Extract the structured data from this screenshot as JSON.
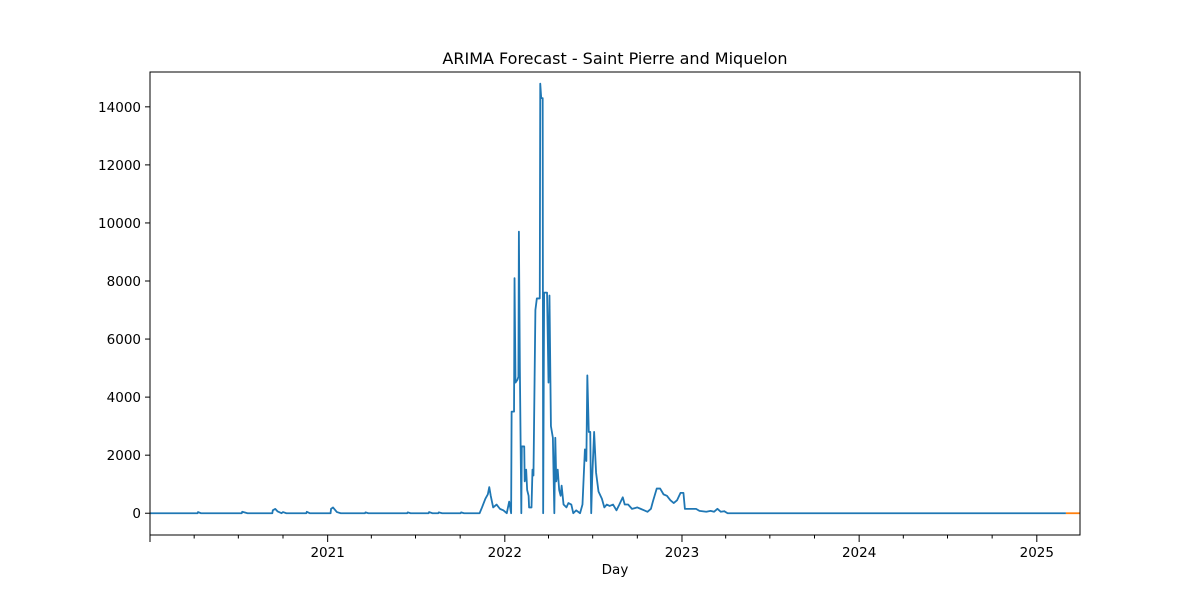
{
  "chart_data": {
    "type": "line",
    "title": "ARIMA Forecast - Saint Pierre and Miquelon",
    "xlabel": "Day",
    "ylabel": "",
    "x_axis": "date",
    "xlim": [
      "2020-01-01",
      "2025-03-31"
    ],
    "ylim": [
      -750,
      15200
    ],
    "x_tick_labels": [
      "2021",
      "2022",
      "2023",
      "2024",
      "2025"
    ],
    "y_ticks": [
      0,
      2000,
      4000,
      6000,
      8000,
      10000,
      12000,
      14000
    ],
    "grid": false,
    "legend": "none",
    "colors": {
      "history": "#1f77b4",
      "forecast": "#ff7f0e"
    },
    "series": [
      {
        "role": "history",
        "points": [
          [
            "2020-01-01",
            0
          ],
          [
            "2020-04-08",
            0
          ],
          [
            "2020-04-09",
            40
          ],
          [
            "2020-04-15",
            0
          ],
          [
            "2020-07-08",
            0
          ],
          [
            "2020-07-09",
            50
          ],
          [
            "2020-07-20",
            0
          ],
          [
            "2020-09-09",
            0
          ],
          [
            "2020-09-10",
            100
          ],
          [
            "2020-09-15",
            150
          ],
          [
            "2020-09-20",
            60
          ],
          [
            "2020-09-28",
            0
          ],
          [
            "2020-10-01",
            40
          ],
          [
            "2020-10-08",
            0
          ],
          [
            "2020-11-18",
            0
          ],
          [
            "2020-11-19",
            50
          ],
          [
            "2020-11-25",
            0
          ],
          [
            "2021-01-07",
            0
          ],
          [
            "2021-01-08",
            150
          ],
          [
            "2021-01-12",
            200
          ],
          [
            "2021-01-20",
            40
          ],
          [
            "2021-01-28",
            0
          ],
          [
            "2021-03-19",
            0
          ],
          [
            "2021-03-20",
            30
          ],
          [
            "2021-03-26",
            0
          ],
          [
            "2021-06-14",
            0
          ],
          [
            "2021-06-15",
            30
          ],
          [
            "2021-06-21",
            0
          ],
          [
            "2021-07-28",
            0
          ],
          [
            "2021-07-29",
            40
          ],
          [
            "2021-08-05",
            0
          ],
          [
            "2021-08-17",
            0
          ],
          [
            "2021-08-18",
            30
          ],
          [
            "2021-08-25",
            0
          ],
          [
            "2021-10-02",
            0
          ],
          [
            "2021-10-03",
            30
          ],
          [
            "2021-10-09",
            0
          ],
          [
            "2021-11-10",
            0
          ],
          [
            "2021-11-15",
            200
          ],
          [
            "2021-11-22",
            500
          ],
          [
            "2021-11-27",
            650
          ],
          [
            "2021-11-30",
            900
          ],
          [
            "2021-12-03",
            600
          ],
          [
            "2021-12-08",
            200
          ],
          [
            "2021-12-15",
            300
          ],
          [
            "2021-12-22",
            150
          ],
          [
            "2021-12-29",
            100
          ],
          [
            "2022-01-05",
            0
          ],
          [
            "2022-01-10",
            400
          ],
          [
            "2022-01-14",
            0
          ],
          [
            "2022-01-15",
            3500
          ],
          [
            "2022-01-20",
            3500
          ],
          [
            "2022-01-21",
            8100
          ],
          [
            "2022-01-23",
            4500
          ],
          [
            "2022-01-27",
            4600
          ],
          [
            "2022-01-29",
            4700
          ],
          [
            "2022-01-30",
            9700
          ],
          [
            "2022-02-01",
            5000
          ],
          [
            "2022-02-04",
            0
          ],
          [
            "2022-02-05",
            2300
          ],
          [
            "2022-02-10",
            2300
          ],
          [
            "2022-02-11",
            1100
          ],
          [
            "2022-02-14",
            1500
          ],
          [
            "2022-02-16",
            800
          ],
          [
            "2022-02-19",
            600
          ],
          [
            "2022-02-20",
            200
          ],
          [
            "2022-02-25",
            200
          ],
          [
            "2022-02-27",
            1500
          ],
          [
            "2022-03-01",
            1300
          ],
          [
            "2022-03-05",
            7000
          ],
          [
            "2022-03-08",
            7400
          ],
          [
            "2022-03-14",
            7400
          ],
          [
            "2022-03-15",
            14800
          ],
          [
            "2022-03-17",
            14300
          ],
          [
            "2022-03-20",
            14300
          ],
          [
            "2022-03-21",
            0
          ],
          [
            "2022-03-23",
            7600
          ],
          [
            "2022-03-29",
            7600
          ],
          [
            "2022-04-01",
            4500
          ],
          [
            "2022-04-03",
            7500
          ],
          [
            "2022-04-06",
            3000
          ],
          [
            "2022-04-10",
            2600
          ],
          [
            "2022-04-13",
            0
          ],
          [
            "2022-04-15",
            2600
          ],
          [
            "2022-04-17",
            1100
          ],
          [
            "2022-04-20",
            1500
          ],
          [
            "2022-04-23",
            800
          ],
          [
            "2022-04-26",
            600
          ],
          [
            "2022-04-28",
            950
          ],
          [
            "2022-05-02",
            300
          ],
          [
            "2022-05-08",
            200
          ],
          [
            "2022-05-12",
            350
          ],
          [
            "2022-05-18",
            300
          ],
          [
            "2022-05-22",
            0
          ],
          [
            "2022-05-28",
            100
          ],
          [
            "2022-06-05",
            0
          ],
          [
            "2022-06-10",
            300
          ],
          [
            "2022-06-15",
            2200
          ],
          [
            "2022-06-18",
            1800
          ],
          [
            "2022-06-20",
            4750
          ],
          [
            "2022-06-23",
            2800
          ],
          [
            "2022-06-26",
            2800
          ],
          [
            "2022-06-28",
            0
          ],
          [
            "2022-06-30",
            1200
          ],
          [
            "2022-07-04",
            2800
          ],
          [
            "2022-07-08",
            1400
          ],
          [
            "2022-07-13",
            750
          ],
          [
            "2022-07-20",
            500
          ],
          [
            "2022-07-25",
            200
          ],
          [
            "2022-07-30",
            300
          ],
          [
            "2022-08-05",
            250
          ],
          [
            "2022-08-12",
            300
          ],
          [
            "2022-08-19",
            100
          ],
          [
            "2022-08-25",
            300
          ],
          [
            "2022-09-01",
            550
          ],
          [
            "2022-09-05",
            300
          ],
          [
            "2022-09-12",
            300
          ],
          [
            "2022-09-20",
            150
          ],
          [
            "2022-10-01",
            200
          ],
          [
            "2022-10-08",
            150
          ],
          [
            "2022-10-15",
            100
          ],
          [
            "2022-10-22",
            50
          ],
          [
            "2022-10-29",
            150
          ],
          [
            "2022-11-02",
            400
          ],
          [
            "2022-11-10",
            850
          ],
          [
            "2022-11-17",
            850
          ],
          [
            "2022-11-24",
            650
          ],
          [
            "2022-12-01",
            600
          ],
          [
            "2022-12-08",
            450
          ],
          [
            "2022-12-15",
            350
          ],
          [
            "2022-12-22",
            450
          ],
          [
            "2022-12-29",
            700
          ],
          [
            "2023-01-04",
            700
          ],
          [
            "2023-01-07",
            150
          ],
          [
            "2023-01-15",
            150
          ],
          [
            "2023-01-30",
            150
          ],
          [
            "2023-02-06",
            80
          ],
          [
            "2023-02-20",
            50
          ],
          [
            "2023-03-01",
            80
          ],
          [
            "2023-03-08",
            50
          ],
          [
            "2023-03-15",
            150
          ],
          [
            "2023-03-22",
            50
          ],
          [
            "2023-03-29",
            70
          ],
          [
            "2023-04-05",
            0
          ],
          [
            "2025-03-02",
            0
          ]
        ]
      },
      {
        "role": "forecast",
        "points": [
          [
            "2025-03-02",
            0
          ],
          [
            "2025-03-31",
            0
          ]
        ]
      }
    ]
  }
}
